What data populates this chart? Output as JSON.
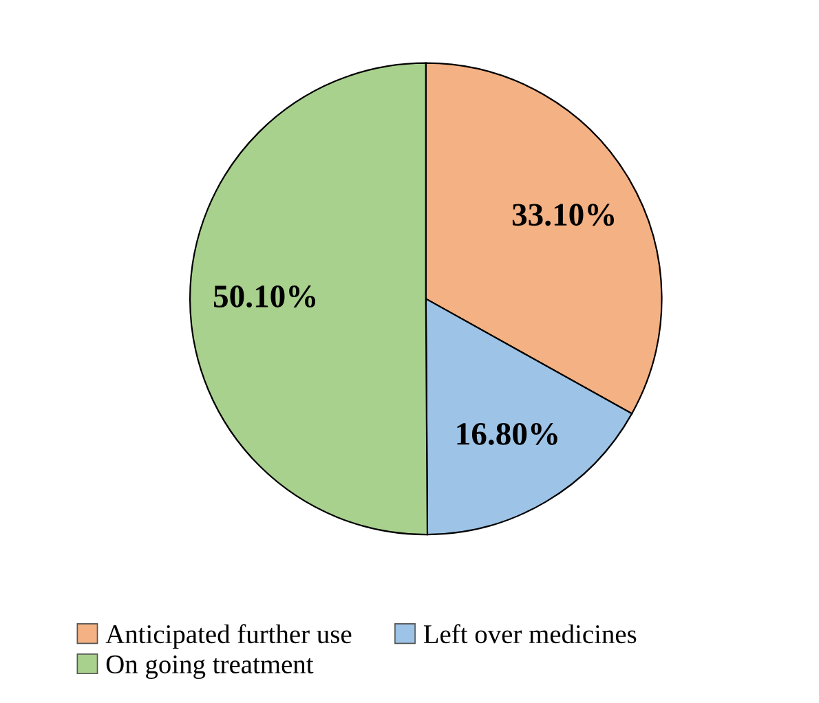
{
  "chart_data": {
    "type": "pie",
    "categories": [
      "Anticipated further use",
      "Left over medicines",
      "On going treatment"
    ],
    "values": [
      33.1,
      16.8,
      50.1
    ],
    "value_labels": [
      "33.10%",
      "16.80%",
      "50.10%"
    ],
    "colors": [
      "#f4b183",
      "#9dc3e6",
      "#a9d18e"
    ],
    "legend": "bottom"
  }
}
